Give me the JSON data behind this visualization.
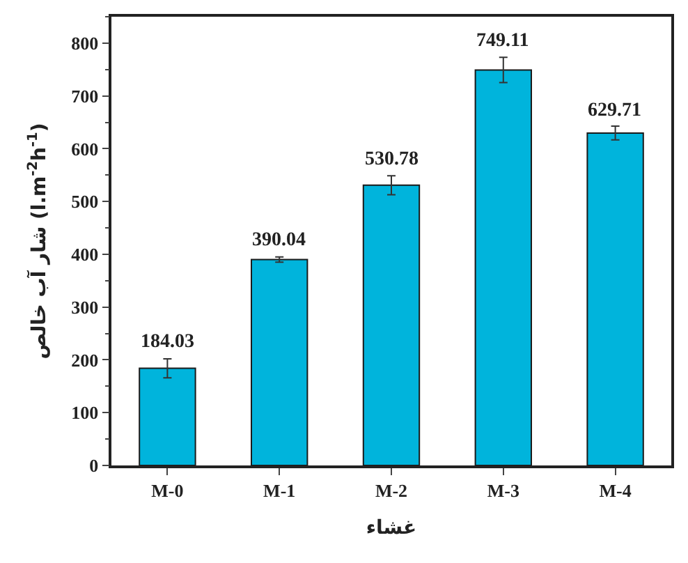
{
  "chart_data": {
    "type": "bar",
    "xlabel": "غشاء",
    "ylabel": "شار آب خالص (l.m$^{-2}$h$^{-1}$)",
    "categories": [
      "M-0",
      "M-1",
      "M-2",
      "M-3",
      "M-4"
    ],
    "values": [
      184.03,
      390.04,
      530.78,
      749.11,
      629.71
    ],
    "errors": [
      18,
      5,
      18,
      24,
      13
    ],
    "color": "#00b4dc",
    "data_labels": true,
    "ylim": [
      0,
      850
    ],
    "yticks": [
      0,
      100,
      200,
      300,
      400,
      500,
      600,
      700,
      800
    ]
  }
}
